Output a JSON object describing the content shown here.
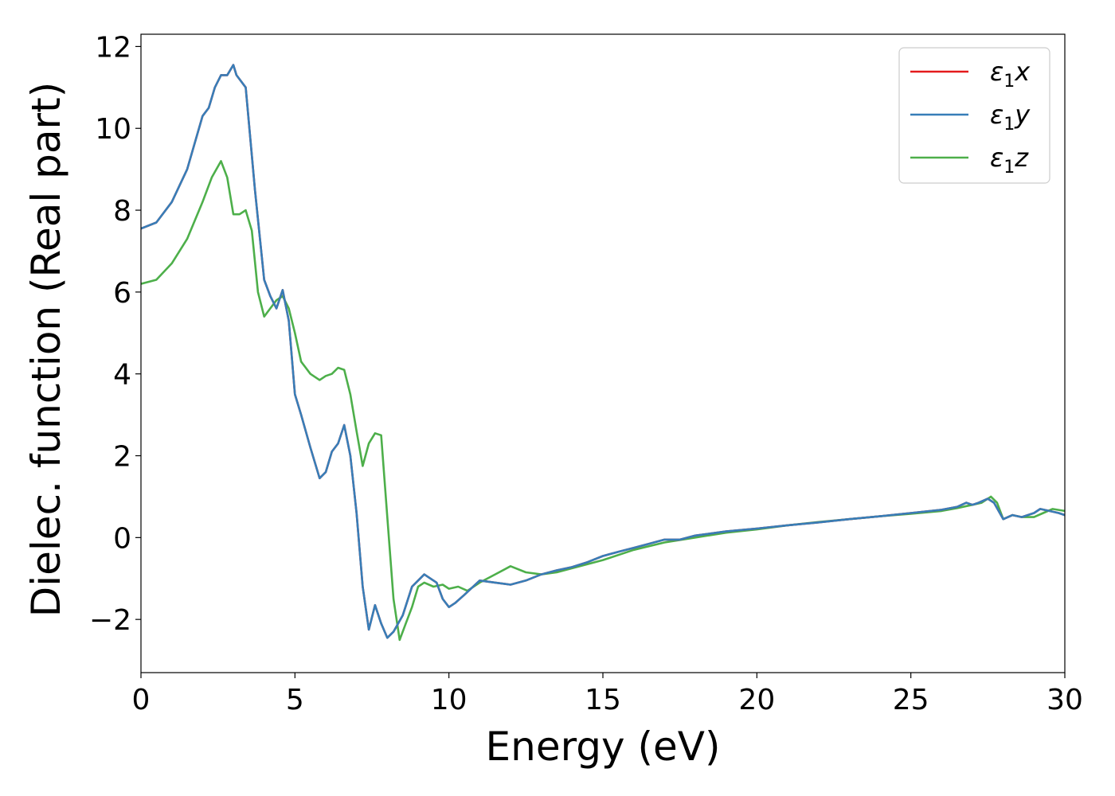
{
  "chart_data": {
    "type": "line",
    "xlabel": "Energy (eV)",
    "ylabel": "Dielec. function (Real part)",
    "xlim": [
      0,
      30
    ],
    "ylim": [
      -3.3,
      12.3
    ],
    "xticks": [
      0,
      5,
      10,
      15,
      20,
      25,
      30
    ],
    "xtick_labels": [
      "0",
      "5",
      "10",
      "15",
      "20",
      "25",
      "30"
    ],
    "yticks": [
      -2,
      0,
      2,
      4,
      6,
      8,
      10,
      12
    ],
    "ytick_labels": [
      "−2",
      "0",
      "2",
      "4",
      "6",
      "8",
      "10",
      "12"
    ],
    "grid": false,
    "legend_position": "top-right",
    "series": [
      {
        "name": "ε1x",
        "legend_main": "ε",
        "legend_sub": "1",
        "legend_var": "x",
        "color": "#e41a1c",
        "x": [
          0,
          0.5,
          1.0,
          1.5,
          2.0,
          2.2,
          2.4,
          2.6,
          2.8,
          3.0,
          3.1,
          3.4,
          3.7,
          4.0,
          4.2,
          4.4,
          4.6,
          4.8,
          5.0,
          5.2,
          5.5,
          5.8,
          6.0,
          6.2,
          6.4,
          6.6,
          6.8,
          7.0,
          7.2,
          7.4,
          7.6,
          7.8,
          8.0,
          8.2,
          8.5,
          8.8,
          9.0,
          9.2,
          9.4,
          9.6,
          9.8,
          10.0,
          10.2,
          10.5,
          11.0,
          11.5,
          12.0,
          12.5,
          13.0,
          13.5,
          14.0,
          14.5,
          15.0,
          15.5,
          16.0,
          16.5,
          17.0,
          17.5,
          18.0,
          19.0,
          20.0,
          21.0,
          22.0,
          23.0,
          24.0,
          25.0,
          26.0,
          26.5,
          26.8,
          27.0,
          27.2,
          27.5,
          27.7,
          28.0,
          28.3,
          28.6,
          29.0,
          29.2,
          29.5,
          29.8,
          30.0
        ],
        "y": [
          7.55,
          7.7,
          8.2,
          9.0,
          10.3,
          10.5,
          11.0,
          11.3,
          11.3,
          11.55,
          11.3,
          11.0,
          8.5,
          6.3,
          5.9,
          5.6,
          6.05,
          5.3,
          3.5,
          3.0,
          2.2,
          1.45,
          1.6,
          2.1,
          2.3,
          2.75,
          2.0,
          0.6,
          -1.2,
          -2.25,
          -1.65,
          -2.1,
          -2.45,
          -2.3,
          -1.9,
          -1.2,
          -1.05,
          -0.9,
          -1.0,
          -1.1,
          -1.5,
          -1.7,
          -1.6,
          -1.4,
          -1.05,
          -1.1,
          -1.15,
          -1.05,
          -0.9,
          -0.8,
          -0.72,
          -0.6,
          -0.45,
          -0.35,
          -0.25,
          -0.15,
          -0.05,
          -0.05,
          0.05,
          0.15,
          0.22,
          0.3,
          0.37,
          0.45,
          0.52,
          0.6,
          0.68,
          0.75,
          0.85,
          0.8,
          0.85,
          0.95,
          0.85,
          0.45,
          0.55,
          0.5,
          0.6,
          0.7,
          0.65,
          0.6,
          0.55
        ]
      },
      {
        "name": "ε1y",
        "legend_main": "ε",
        "legend_sub": "1",
        "legend_var": "y",
        "color": "#377eb8",
        "x": [
          0,
          0.5,
          1.0,
          1.5,
          2.0,
          2.2,
          2.4,
          2.6,
          2.8,
          3.0,
          3.1,
          3.4,
          3.7,
          4.0,
          4.2,
          4.4,
          4.6,
          4.8,
          5.0,
          5.2,
          5.5,
          5.8,
          6.0,
          6.2,
          6.4,
          6.6,
          6.8,
          7.0,
          7.2,
          7.4,
          7.6,
          7.8,
          8.0,
          8.2,
          8.5,
          8.8,
          9.0,
          9.2,
          9.4,
          9.6,
          9.8,
          10.0,
          10.2,
          10.5,
          11.0,
          11.5,
          12.0,
          12.5,
          13.0,
          13.5,
          14.0,
          14.5,
          15.0,
          15.5,
          16.0,
          16.5,
          17.0,
          17.5,
          18.0,
          19.0,
          20.0,
          21.0,
          22.0,
          23.0,
          24.0,
          25.0,
          26.0,
          26.5,
          26.8,
          27.0,
          27.2,
          27.5,
          27.7,
          28.0,
          28.3,
          28.6,
          29.0,
          29.2,
          29.5,
          29.8,
          30.0
        ],
        "y": [
          7.55,
          7.7,
          8.2,
          9.0,
          10.3,
          10.5,
          11.0,
          11.3,
          11.3,
          11.55,
          11.3,
          11.0,
          8.5,
          6.3,
          5.9,
          5.6,
          6.05,
          5.3,
          3.5,
          3.0,
          2.2,
          1.45,
          1.6,
          2.1,
          2.3,
          2.75,
          2.0,
          0.6,
          -1.2,
          -2.25,
          -1.65,
          -2.1,
          -2.45,
          -2.3,
          -1.9,
          -1.2,
          -1.05,
          -0.9,
          -1.0,
          -1.1,
          -1.5,
          -1.7,
          -1.6,
          -1.4,
          -1.05,
          -1.1,
          -1.15,
          -1.05,
          -0.9,
          -0.8,
          -0.72,
          -0.6,
          -0.45,
          -0.35,
          -0.25,
          -0.15,
          -0.05,
          -0.05,
          0.05,
          0.15,
          0.22,
          0.3,
          0.37,
          0.45,
          0.52,
          0.6,
          0.68,
          0.75,
          0.85,
          0.8,
          0.85,
          0.95,
          0.85,
          0.45,
          0.55,
          0.5,
          0.6,
          0.7,
          0.65,
          0.6,
          0.55
        ]
      },
      {
        "name": "ε1z",
        "legend_main": "ε",
        "legend_sub": "1",
        "legend_var": "z",
        "color": "#4daf4a",
        "x": [
          0,
          0.5,
          1.0,
          1.5,
          2.0,
          2.3,
          2.6,
          2.8,
          3.0,
          3.2,
          3.4,
          3.6,
          3.8,
          4.0,
          4.2,
          4.4,
          4.6,
          4.8,
          5.0,
          5.2,
          5.5,
          5.8,
          6.0,
          6.2,
          6.4,
          6.6,
          6.8,
          7.0,
          7.2,
          7.4,
          7.6,
          7.8,
          8.0,
          8.2,
          8.4,
          8.6,
          8.8,
          9.0,
          9.2,
          9.5,
          9.8,
          10.0,
          10.3,
          10.6,
          11.0,
          11.5,
          12.0,
          12.5,
          13.0,
          13.5,
          14.0,
          15.0,
          16.0,
          17.0,
          18.0,
          19.0,
          20.0,
          21.0,
          22.0,
          23.0,
          24.0,
          25.0,
          26.0,
          26.5,
          27.0,
          27.3,
          27.6,
          27.8,
          28.0,
          28.3,
          28.6,
          29.0,
          29.3,
          29.6,
          30.0
        ],
        "y": [
          6.2,
          6.3,
          6.7,
          7.3,
          8.2,
          8.8,
          9.2,
          8.8,
          7.9,
          7.9,
          8.0,
          7.5,
          6.0,
          5.4,
          5.6,
          5.8,
          5.9,
          5.6,
          5.0,
          4.3,
          4.0,
          3.85,
          3.95,
          4.0,
          4.15,
          4.1,
          3.5,
          2.6,
          1.75,
          2.3,
          2.55,
          2.5,
          0.5,
          -1.5,
          -2.5,
          -2.1,
          -1.7,
          -1.2,
          -1.1,
          -1.2,
          -1.15,
          -1.25,
          -1.2,
          -1.3,
          -1.1,
          -0.9,
          -0.7,
          -0.85,
          -0.9,
          -0.85,
          -0.75,
          -0.55,
          -0.3,
          -0.12,
          0.0,
          0.12,
          0.2,
          0.3,
          0.38,
          0.45,
          0.52,
          0.58,
          0.65,
          0.72,
          0.8,
          0.85,
          1.0,
          0.85,
          0.45,
          0.55,
          0.5,
          0.5,
          0.6,
          0.7,
          0.65
        ]
      }
    ]
  }
}
